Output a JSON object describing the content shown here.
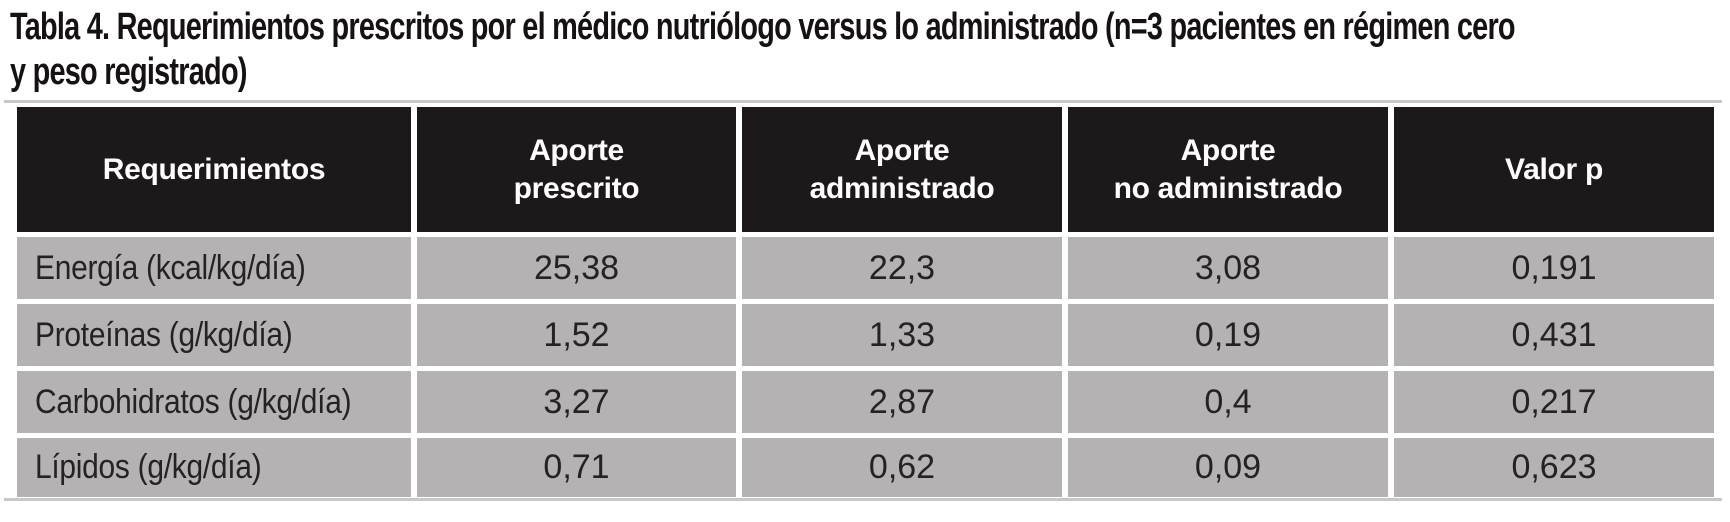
{
  "title": {
    "line1": "Tabla 4. Requerimientos prescritos por el médico nutriólogo versus lo administrado (n=3 pacientes en régimen cero",
    "line2": "y peso registrado)"
  },
  "colors": {
    "header_bg": "#1d191a",
    "header_text": "#ffffff",
    "row_bg": "#b5b2b4",
    "body_text": "#262223",
    "rule": "#c9c7c8"
  },
  "table": {
    "columns": [
      {
        "id": "requerimientos",
        "line1": "Requerimientos",
        "line2": ""
      },
      {
        "id": "aporte_prescrito",
        "line1": "Aporte",
        "line2": "prescrito"
      },
      {
        "id": "aporte_administrado",
        "line1": "Aporte",
        "line2": "administrado"
      },
      {
        "id": "aporte_no_administrado",
        "line1": "Aporte",
        "line2": "no administrado"
      },
      {
        "id": "valor_p",
        "line1": "Valor p",
        "line2": ""
      }
    ],
    "rows": [
      {
        "requerimiento": "Energía (kcal/kg/día)",
        "aporte_prescrito": "25,38",
        "aporte_administrado": "22,3",
        "aporte_no_administrado": "3,08",
        "valor_p": "0,191"
      },
      {
        "requerimiento": "Proteínas (g/kg/día)",
        "aporte_prescrito": "1,52",
        "aporte_administrado": "1,33",
        "aporte_no_administrado": "0,19",
        "valor_p": "0,431"
      },
      {
        "requerimiento": "Carbohidratos (g/kg/día)",
        "aporte_prescrito": "3,27",
        "aporte_administrado": "2,87",
        "aporte_no_administrado": "0,4",
        "valor_p": "0,217"
      },
      {
        "requerimiento": "Lípidos (g/kg/día)",
        "aporte_prescrito": "0,71",
        "aporte_administrado": "0,62",
        "aporte_no_administrado": "0,09",
        "valor_p": "0,623"
      }
    ]
  }
}
